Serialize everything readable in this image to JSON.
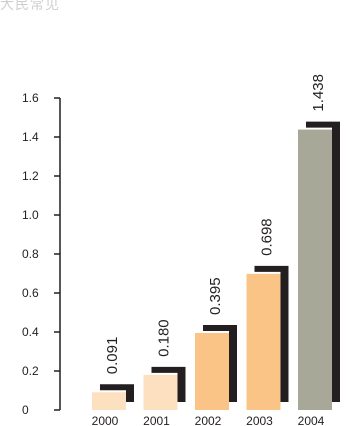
{
  "heading": "大民常见",
  "chart_data": {
    "type": "bar",
    "title": "",
    "xlabel": "",
    "ylabel": "",
    "categories": [
      "2000",
      "2001",
      "2002",
      "2003",
      "2004"
    ],
    "values": [
      0.091,
      0.18,
      0.395,
      0.698,
      1.438
    ],
    "value_labels": [
      "0.091",
      "0.180",
      "0.395",
      "0.698",
      "1.438"
    ],
    "yticks": [
      "0",
      "0.2",
      "0.4",
      "0.6",
      "0.8",
      "1.0",
      "1.2",
      "1.4",
      "1.6"
    ],
    "ylim": [
      0,
      1.6
    ],
    "grid": false,
    "bar_colors": [
      "#fde0bf",
      "#fde0bf",
      "#fbc487",
      "#fbc487",
      "#a8a898"
    ],
    "shadow_color": "#231f20",
    "axis_color": "#231f20"
  }
}
